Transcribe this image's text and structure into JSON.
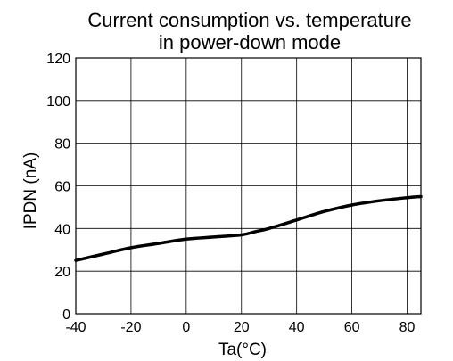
{
  "chart_data": {
    "type": "line",
    "title_line1": "Current consumption vs. temperature",
    "title_line2": "in power-down mode",
    "xlabel": "Ta(°C)",
    "ylabel": "IPDN (nA)",
    "xlim": [
      -40,
      85
    ],
    "ylim": [
      0,
      120
    ],
    "xticks": [
      -40,
      -20,
      0,
      20,
      40,
      60,
      80
    ],
    "yticks": [
      0,
      20,
      40,
      60,
      80,
      100,
      120
    ],
    "grid": true,
    "line_color": "#000000",
    "series": [
      {
        "x": [
          -40,
          -30,
          -20,
          -10,
          0,
          10,
          20,
          25,
          30,
          40,
          50,
          60,
          70,
          80,
          85
        ],
        "y": [
          25,
          28,
          31,
          33,
          35,
          36,
          37,
          38.5,
          40,
          44,
          48,
          51,
          53,
          54.5,
          55
        ]
      }
    ]
  }
}
